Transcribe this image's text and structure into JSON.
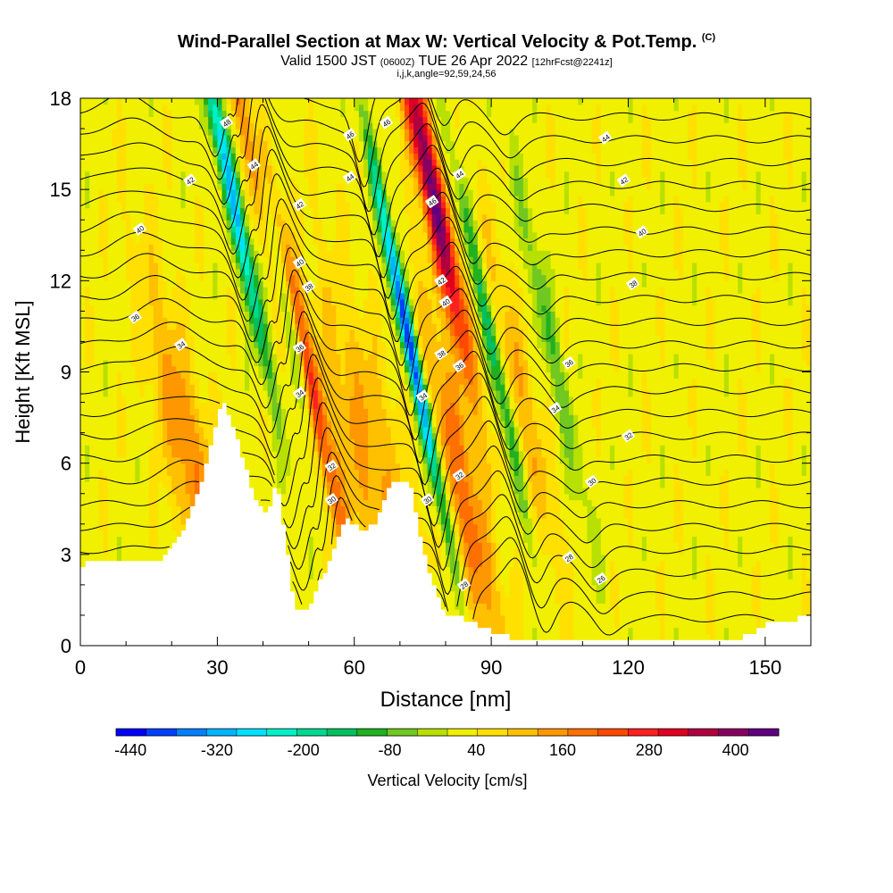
{
  "title": "Wind-Parallel Section at Max W: Vertical Velocity & Pot.Temp.",
  "title_mark": "(C)",
  "valid_prefix": "Valid 1500 JST",
  "valid_utc": "(0600Z)",
  "valid_date": "TUE 26 Apr 2022",
  "forecast_note": "[12hrFcst@2241z]",
  "indices_line": "i,j,k,angle=92,59,24,56",
  "chart_data": {
    "type": "heatmap",
    "xlabel": "Distance [nm]",
    "ylabel": "Height [Kft MSL]",
    "xlim": [
      0,
      160
    ],
    "ylim": [
      0,
      18
    ],
    "x_ticks": [
      "0",
      "30",
      "60",
      "90",
      "120",
      "150"
    ],
    "y_ticks": [
      "0",
      "3",
      "6",
      "9",
      "12",
      "15",
      "18"
    ],
    "colorbar": {
      "label": "Vertical Velocity [cm/s]",
      "tick_labels": [
        "-440",
        "-320",
        "-200",
        "-80",
        "40",
        "160",
        "280",
        "400"
      ],
      "min": -460,
      "max": 460,
      "colors": [
        "#0000ff",
        "#0040ff",
        "#0080ff",
        "#00b4ff",
        "#00e0ff",
        "#00f0c8",
        "#00d890",
        "#00c060",
        "#20b020",
        "#70c820",
        "#b8e000",
        "#f0f000",
        "#ffe000",
        "#ffc000",
        "#ff9800",
        "#ff7000",
        "#ff4800",
        "#ff2020",
        "#e00020",
        "#b00040",
        "#880060",
        "#600080"
      ]
    },
    "terrain_kft": [
      [
        0,
        2.6
      ],
      [
        4,
        2.9
      ],
      [
        18,
        2.9
      ],
      [
        22,
        3.6
      ],
      [
        26,
        5.2
      ],
      [
        29,
        7
      ],
      [
        31,
        8.1
      ],
      [
        34,
        7
      ],
      [
        36,
        6
      ],
      [
        38,
        5
      ],
      [
        41,
        4.3
      ],
      [
        43,
        5.5
      ],
      [
        45,
        3.5
      ],
      [
        47,
        1.3
      ],
      [
        50,
        1.3
      ],
      [
        52,
        2
      ],
      [
        55,
        3
      ],
      [
        58,
        4.2
      ],
      [
        62,
        3.8
      ],
      [
        65,
        4.1
      ],
      [
        68,
        5.5
      ],
      [
        72,
        5.5
      ],
      [
        74,
        4
      ],
      [
        76,
        2.6
      ],
      [
        80,
        1
      ],
      [
        84,
        0.9
      ],
      [
        88,
        0.6
      ],
      [
        94,
        0.3
      ],
      [
        130,
        0.3
      ],
      [
        145,
        0.3
      ],
      [
        150,
        0.7
      ],
      [
        160,
        1
      ]
    ],
    "updrafts": [
      {
        "x": 24,
        "h": 6,
        "w": 5,
        "peak": 140
      },
      {
        "x": 38,
        "h": 16,
        "w": 2,
        "peak": 280
      },
      {
        "x": 49.5,
        "h": 9,
        "w": 2.4,
        "peak": 270
      },
      {
        "x": 63,
        "h": 6,
        "w": 8,
        "peak": 110
      },
      {
        "x": 77,
        "h": 15,
        "w": 2.6,
        "peak": 400
      },
      {
        "x": 84,
        "h": 5,
        "w": 4,
        "peak": 170
      },
      {
        "x": 97,
        "h": 8,
        "w": 3,
        "peak": 100
      }
    ],
    "downdrafts": [
      {
        "x": 33,
        "h": 15,
        "w": 1.8,
        "peak": -330
      },
      {
        "x": 44,
        "h": 12,
        "w": 1.9,
        "peak": -350
      },
      {
        "x": 72,
        "h": 10,
        "w": 1.6,
        "peak": -440
      },
      {
        "x": 90,
        "h": 10,
        "w": 1.6,
        "peak": -180
      },
      {
        "x": 103,
        "h": 10,
        "w": 2,
        "peak": -110
      }
    ],
    "theta_contours": {
      "levels": [
        26,
        27,
        28,
        29,
        30,
        31,
        32,
        33,
        34,
        35,
        36,
        37,
        38,
        39,
        40,
        41,
        42,
        43,
        44,
        45,
        46,
        47,
        48
      ],
      "labels": [
        {
          "text": "48",
          "x": 32,
          "y": 17.2
        },
        {
          "text": "44",
          "x": 38,
          "y": 15.8
        },
        {
          "text": "42",
          "x": 24,
          "y": 15.3
        },
        {
          "text": "40",
          "x": 13,
          "y": 13.7
        },
        {
          "text": "36",
          "x": 12,
          "y": 10.8
        },
        {
          "text": "34",
          "x": 22,
          "y": 9.9
        },
        {
          "text": "46",
          "x": 59,
          "y": 16.8
        },
        {
          "text": "44",
          "x": 59,
          "y": 15.4
        },
        {
          "text": "46",
          "x": 67,
          "y": 17.2
        },
        {
          "text": "42",
          "x": 48,
          "y": 14.5
        },
        {
          "text": "40",
          "x": 48,
          "y": 12.6
        },
        {
          "text": "38",
          "x": 50,
          "y": 11.8
        },
        {
          "text": "36",
          "x": 48,
          "y": 9.8
        },
        {
          "text": "34",
          "x": 48,
          "y": 8.3
        },
        {
          "text": "32",
          "x": 55,
          "y": 5.9
        },
        {
          "text": "30",
          "x": 55,
          "y": 4.8
        },
        {
          "text": "46",
          "x": 77,
          "y": 14.6
        },
        {
          "text": "44",
          "x": 83,
          "y": 15.5
        },
        {
          "text": "42",
          "x": 79,
          "y": 12
        },
        {
          "text": "40",
          "x": 80,
          "y": 11.3
        },
        {
          "text": "38",
          "x": 79,
          "y": 9.6
        },
        {
          "text": "36",
          "x": 83,
          "y": 9.2
        },
        {
          "text": "34",
          "x": 75,
          "y": 8.2
        },
        {
          "text": "32",
          "x": 83,
          "y": 5.6
        },
        {
          "text": "30",
          "x": 76,
          "y": 4.8
        },
        {
          "text": "28",
          "x": 84,
          "y": 2
        },
        {
          "text": "44",
          "x": 115,
          "y": 16.7
        },
        {
          "text": "42",
          "x": 119,
          "y": 15.3
        },
        {
          "text": "40",
          "x": 123,
          "y": 13.6
        },
        {
          "text": "38",
          "x": 121,
          "y": 11.9
        },
        {
          "text": "36",
          "x": 107,
          "y": 9.3
        },
        {
          "text": "34",
          "x": 104,
          "y": 7.8
        },
        {
          "text": "32",
          "x": 120,
          "y": 6.9
        },
        {
          "text": "30",
          "x": 112,
          "y": 5.4
        },
        {
          "text": "28",
          "x": 107,
          "y": 2.9
        },
        {
          "text": "26",
          "x": 114,
          "y": 2.2
        }
      ]
    }
  }
}
